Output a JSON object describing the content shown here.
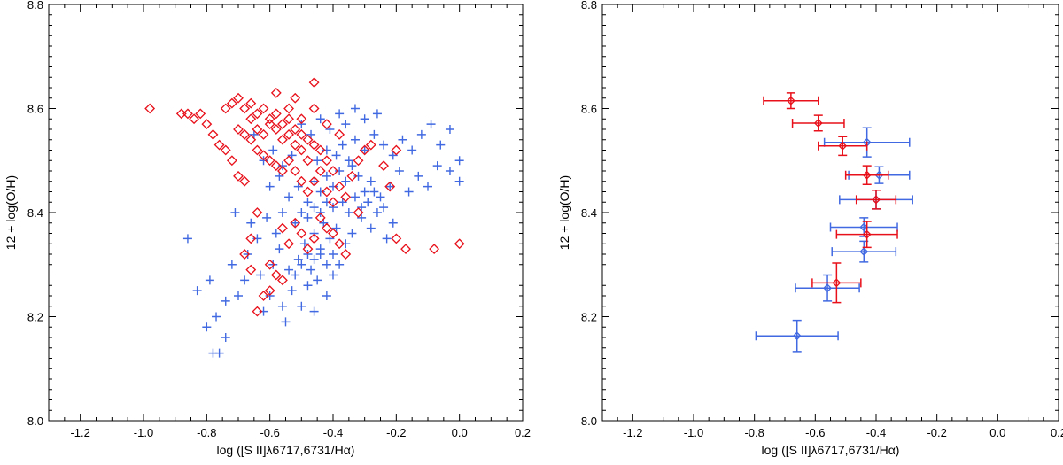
{
  "chart_data": [
    {
      "type": "scatter",
      "panel": "left",
      "xlabel": "log ([S II]λ6717,6731/Hα)",
      "ylabel": "12 + log(O/H)",
      "xlim": [
        -1.3,
        0.2
      ],
      "ylim": [
        8.0,
        8.8
      ],
      "x_ticks": [
        "-1.2",
        "-1.0",
        "-0.8",
        "-0.6",
        "-0.4",
        "-0.2",
        "0.0",
        "0.2"
      ],
      "y_ticks": [
        "8.0",
        "8.2",
        "8.4",
        "8.6",
        "8.8"
      ],
      "series": [
        {
          "name": "blue crosses",
          "marker": "plus",
          "color": "#4169e1",
          "points": [
            [
              -0.78,
              8.13
            ],
            [
              -0.76,
              8.13
            ],
            [
              -0.74,
              8.16
            ],
            [
              -0.8,
              8.18
            ],
            [
              -0.77,
              8.2
            ],
            [
              -0.74,
              8.23
            ],
            [
              -0.83,
              8.25
            ],
            [
              -0.79,
              8.27
            ],
            [
              -0.86,
              8.35
            ],
            [
              -0.7,
              8.24
            ],
            [
              -0.68,
              8.27
            ],
            [
              -0.72,
              8.3
            ],
            [
              -0.67,
              8.32
            ],
            [
              -0.62,
              8.21
            ],
            [
              -0.6,
              8.24
            ],
            [
              -0.63,
              8.28
            ],
            [
              -0.59,
              8.3
            ],
            [
              -0.57,
              8.33
            ],
            [
              -0.55,
              8.19
            ],
            [
              -0.56,
              8.22
            ],
            [
              -0.53,
              8.25
            ],
            [
              -0.54,
              8.29
            ],
            [
              -0.51,
              8.31
            ],
            [
              -0.5,
              8.22
            ],
            [
              -0.48,
              8.26
            ],
            [
              -0.47,
              8.29
            ],
            [
              -0.45,
              8.27
            ],
            [
              -0.46,
              8.21
            ],
            [
              -0.42,
              8.24
            ],
            [
              -0.4,
              8.28
            ],
            [
              -0.38,
              8.3
            ],
            [
              -0.44,
              8.32
            ],
            [
              -0.66,
              8.38
            ],
            [
              -0.71,
              8.4
            ],
            [
              -0.64,
              8.35
            ],
            [
              -0.61,
              8.39
            ],
            [
              -0.58,
              8.36
            ],
            [
              -0.56,
              8.4
            ],
            [
              -0.52,
              8.38
            ],
            [
              -0.49,
              8.34
            ],
            [
              -0.46,
              8.36
            ],
            [
              -0.43,
              8.38
            ],
            [
              -0.41,
              8.35
            ],
            [
              -0.39,
              8.37
            ],
            [
              -0.36,
              8.34
            ],
            [
              -0.34,
              8.36
            ],
            [
              -0.31,
              8.39
            ],
            [
              -0.28,
              8.37
            ],
            [
              -0.26,
              8.4
            ],
            [
              -0.23,
              8.35
            ],
            [
              -0.21,
              8.38
            ],
            [
              -0.54,
              8.43
            ],
            [
              -0.51,
              8.45
            ],
            [
              -0.48,
              8.42
            ],
            [
              -0.46,
              8.46
            ],
            [
              -0.44,
              8.44
            ],
            [
              -0.42,
              8.47
            ],
            [
              -0.4,
              8.45
            ],
            [
              -0.38,
              8.48
            ],
            [
              -0.36,
              8.46
            ],
            [
              -0.34,
              8.49
            ],
            [
              -0.32,
              8.47
            ],
            [
              -0.3,
              8.44
            ],
            [
              -0.28,
              8.46
            ],
            [
              -0.25,
              8.43
            ],
            [
              -0.22,
              8.45
            ],
            [
              -0.19,
              8.48
            ],
            [
              -0.16,
              8.44
            ],
            [
              -0.13,
              8.47
            ],
            [
              -0.1,
              8.45
            ],
            [
              -0.07,
              8.49
            ],
            [
              -0.03,
              8.48
            ],
            [
              -0.45,
              8.5
            ],
            [
              -0.42,
              8.52
            ],
            [
              -0.39,
              8.51
            ],
            [
              -0.37,
              8.53
            ],
            [
              -0.35,
              8.5
            ],
            [
              -0.33,
              8.54
            ],
            [
              -0.3,
              8.52
            ],
            [
              -0.27,
              8.55
            ],
            [
              -0.24,
              8.53
            ],
            [
              -0.21,
              8.51
            ],
            [
              -0.18,
              8.54
            ],
            [
              -0.15,
              8.52
            ],
            [
              -0.12,
              8.55
            ],
            [
              -0.09,
              8.57
            ],
            [
              -0.06,
              8.53
            ],
            [
              -0.03,
              8.56
            ],
            [
              0.0,
              8.5
            ],
            [
              0.0,
              8.46
            ],
            [
              -0.5,
              8.57
            ],
            [
              -0.47,
              8.55
            ],
            [
              -0.44,
              8.58
            ],
            [
              -0.41,
              8.56
            ],
            [
              -0.38,
              8.59
            ],
            [
              -0.36,
              8.57
            ],
            [
              -0.33,
              8.6
            ],
            [
              -0.3,
              8.58
            ],
            [
              -0.26,
              8.59
            ],
            [
              -0.4,
              8.41
            ],
            [
              -0.37,
              8.42
            ],
            [
              -0.35,
              8.4
            ],
            [
              -0.33,
              8.43
            ],
            [
              -0.31,
              8.41
            ],
            [
              -0.29,
              8.42
            ],
            [
              -0.27,
              8.44
            ],
            [
              -0.24,
              8.41
            ],
            [
              -0.5,
              8.4
            ],
            [
              -0.48,
              8.39
            ],
            [
              -0.46,
              8.41
            ],
            [
              -0.44,
              8.4
            ],
            [
              -0.42,
              8.42
            ],
            [
              -0.6,
              8.45
            ],
            [
              -0.57,
              8.47
            ],
            [
              -0.62,
              8.5
            ],
            [
              -0.59,
              8.52
            ],
            [
              -0.56,
              8.49
            ],
            [
              -0.53,
              8.51
            ],
            [
              -0.65,
              8.55
            ],
            [
              -0.52,
              8.28
            ],
            [
              -0.5,
              8.3
            ],
            [
              -0.48,
              8.32
            ],
            [
              -0.46,
              8.31
            ],
            [
              -0.44,
              8.33
            ],
            [
              -0.42,
              8.3
            ],
            [
              -0.4,
              8.32
            ]
          ]
        },
        {
          "name": "red diamonds",
          "marker": "diamond",
          "color": "#e8101a",
          "points": [
            [
              -0.98,
              8.6
            ],
            [
              -0.88,
              8.59
            ],
            [
              -0.86,
              8.59
            ],
            [
              -0.84,
              8.58
            ],
            [
              -0.82,
              8.59
            ],
            [
              -0.8,
              8.57
            ],
            [
              -0.78,
              8.55
            ],
            [
              -0.76,
              8.53
            ],
            [
              -0.74,
              8.52
            ],
            [
              -0.72,
              8.5
            ],
            [
              -0.7,
              8.47
            ],
            [
              -0.68,
              8.46
            ],
            [
              -0.74,
              8.6
            ],
            [
              -0.72,
              8.61
            ],
            [
              -0.7,
              8.62
            ],
            [
              -0.68,
              8.6
            ],
            [
              -0.66,
              8.61
            ],
            [
              -0.64,
              8.59
            ],
            [
              -0.62,
              8.6
            ],
            [
              -0.6,
              8.58
            ],
            [
              -0.58,
              8.59
            ],
            [
              -0.56,
              8.57
            ],
            [
              -0.54,
              8.58
            ],
            [
              -0.52,
              8.56
            ],
            [
              -0.5,
              8.55
            ],
            [
              -0.48,
              8.54
            ],
            [
              -0.46,
              8.53
            ],
            [
              -0.44,
              8.52
            ],
            [
              -0.42,
              8.5
            ],
            [
              -0.4,
              8.48
            ],
            [
              -0.66,
              8.58
            ],
            [
              -0.64,
              8.56
            ],
            [
              -0.62,
              8.55
            ],
            [
              -0.6,
              8.57
            ],
            [
              -0.58,
              8.56
            ],
            [
              -0.56,
              8.54
            ],
            [
              -0.54,
              8.55
            ],
            [
              -0.52,
              8.53
            ],
            [
              -0.5,
              8.52
            ],
            [
              -0.48,
              8.5
            ],
            [
              -0.7,
              8.56
            ],
            [
              -0.68,
              8.55
            ],
            [
              -0.66,
              8.54
            ],
            [
              -0.64,
              8.52
            ],
            [
              -0.62,
              8.51
            ],
            [
              -0.6,
              8.5
            ],
            [
              -0.58,
              8.49
            ],
            [
              -0.56,
              8.48
            ],
            [
              -0.54,
              8.5
            ],
            [
              -0.52,
              8.48
            ],
            [
              -0.5,
              8.46
            ],
            [
              -0.48,
              8.44
            ],
            [
              -0.46,
              8.46
            ],
            [
              -0.44,
              8.48
            ],
            [
              -0.42,
              8.44
            ],
            [
              -0.4,
              8.42
            ],
            [
              -0.38,
              8.45
            ],
            [
              -0.36,
              8.43
            ],
            [
              -0.34,
              8.47
            ],
            [
              -0.32,
              8.5
            ],
            [
              -0.3,
              8.52
            ],
            [
              -0.28,
              8.53
            ],
            [
              -0.24,
              8.49
            ],
            [
              -0.22,
              8.45
            ],
            [
              -0.2,
              8.52
            ],
            [
              -0.44,
              8.39
            ],
            [
              -0.42,
              8.37
            ],
            [
              -0.4,
              8.36
            ],
            [
              -0.38,
              8.34
            ],
            [
              -0.36,
              8.32
            ],
            [
              -0.46,
              8.35
            ],
            [
              -0.48,
              8.33
            ],
            [
              -0.5,
              8.36
            ],
            [
              -0.52,
              8.38
            ],
            [
              -0.54,
              8.34
            ],
            [
              -0.56,
              8.37
            ],
            [
              -0.58,
              8.28
            ],
            [
              -0.6,
              8.25
            ],
            [
              -0.62,
              8.24
            ],
            [
              -0.64,
              8.21
            ],
            [
              -0.66,
              8.29
            ],
            [
              -0.68,
              8.32
            ],
            [
              -0.66,
              8.35
            ],
            [
              -0.64,
              8.4
            ],
            [
              -0.6,
              8.3
            ],
            [
              -0.56,
              8.27
            ],
            [
              -0.46,
              8.65
            ],
            [
              -0.52,
              8.62
            ],
            [
              -0.58,
              8.63
            ],
            [
              -0.54,
              8.6
            ],
            [
              -0.5,
              8.58
            ],
            [
              -0.46,
              8.6
            ],
            [
              -0.42,
              8.57
            ],
            [
              -0.38,
              8.55
            ],
            [
              -0.08,
              8.33
            ],
            [
              0.0,
              8.34
            ],
            [
              -0.17,
              8.33
            ],
            [
              -0.2,
              8.35
            ],
            [
              -0.32,
              8.4
            ]
          ]
        }
      ]
    },
    {
      "type": "scatter",
      "panel": "right",
      "xlabel": "log ([S II]λ6717,6731/Hα)",
      "ylabel": "12 + log(O/H)",
      "xlim": [
        -1.3,
        0.2
      ],
      "ylim": [
        8.0,
        8.8
      ],
      "x_ticks": [
        "-1.2",
        "-1.0",
        "-0.8",
        "-0.6",
        "-0.4",
        "-0.2",
        "0.0",
        "0.2"
      ],
      "y_ticks": [
        "8.0",
        "8.2",
        "8.4",
        "8.6",
        "8.8"
      ],
      "series": [
        {
          "name": "blue binned means",
          "marker": "diamond-errorbar",
          "color": "#4169e1",
          "points": [
            {
              "x": -0.66,
              "y": 8.163,
              "xerr": 0.135,
              "yerr": 0.03
            },
            {
              "x": -0.56,
              "y": 8.255,
              "xerr": 0.105,
              "yerr": 0.025
            },
            {
              "x": -0.44,
              "y": 8.325,
              "xerr": 0.105,
              "yerr": 0.02
            },
            {
              "x": -0.44,
              "y": 8.372,
              "xerr": 0.11,
              "yerr": 0.018
            },
            {
              "x": -0.4,
              "y": 8.425,
              "xerr": 0.12,
              "yerr": 0.018
            },
            {
              "x": -0.39,
              "y": 8.472,
              "xerr": 0.1,
              "yerr": 0.016
            },
            {
              "x": -0.43,
              "y": 8.535,
              "xerr": 0.14,
              "yerr": 0.028
            }
          ]
        },
        {
          "name": "red binned means",
          "marker": "diamond-errorbar",
          "color": "#e8101a",
          "points": [
            {
              "x": -0.68,
              "y": 8.615,
              "xerr": 0.09,
              "yerr": 0.015
            },
            {
              "x": -0.59,
              "y": 8.572,
              "xerr": 0.085,
              "yerr": 0.015
            },
            {
              "x": -0.51,
              "y": 8.528,
              "xerr": 0.08,
              "yerr": 0.018
            },
            {
              "x": -0.43,
              "y": 8.472,
              "xerr": 0.07,
              "yerr": 0.018
            },
            {
              "x": -0.4,
              "y": 8.425,
              "xerr": 0.065,
              "yerr": 0.018
            },
            {
              "x": -0.43,
              "y": 8.358,
              "xerr": 0.1,
              "yerr": 0.025
            },
            {
              "x": -0.53,
              "y": 8.265,
              "xerr": 0.08,
              "yerr": 0.038
            }
          ]
        }
      ]
    }
  ]
}
